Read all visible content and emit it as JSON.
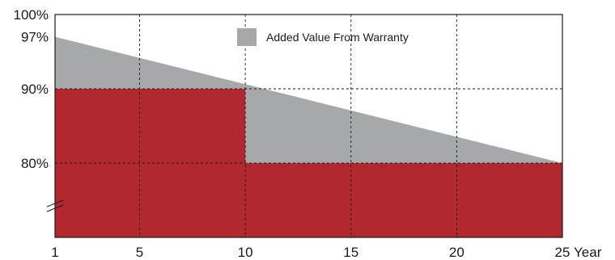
{
  "chart_data": {
    "type": "area",
    "title": "",
    "xlabel": "",
    "ylabel": "",
    "x_unit_label": "Year",
    "xlim": [
      1,
      25
    ],
    "ylim": [
      70,
      100
    ],
    "x_ticks": [
      1,
      5,
      10,
      15,
      20,
      25
    ],
    "y_ticks": [
      100,
      97,
      90,
      80
    ],
    "y_tick_suffix": "%",
    "axis_break_marker": true,
    "grid": true,
    "legend": {
      "position": "top-center",
      "entries": [
        "Added Value From Warranty"
      ]
    },
    "series": [
      {
        "name": "Added Value From Warranty",
        "color": "#a7a8aa",
        "x": [
          1,
          25
        ],
        "y": [
          97,
          80
        ]
      },
      {
        "color": "#b1282e",
        "step": true,
        "x": [
          1,
          10,
          10,
          25
        ],
        "y": [
          90,
          90,
          80,
          80
        ]
      }
    ]
  }
}
